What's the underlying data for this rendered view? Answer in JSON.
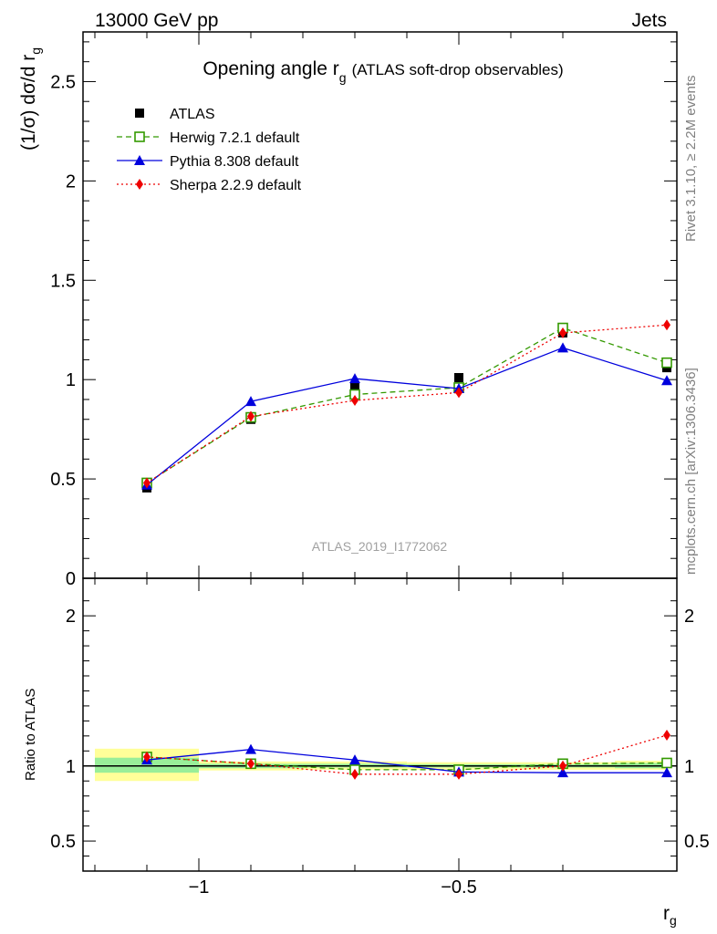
{
  "header": {
    "left": "13000 GeV pp",
    "right": "Jets"
  },
  "side_labels": {
    "rivet": "Rivet 3.1.10, ≥ 2.2M events",
    "mcplots": "mcplots.cern.ch [arXiv:1306.3436]"
  },
  "chart_data": [
    {
      "type": "line",
      "title_main": "Opening angle r",
      "title_sub": "g",
      "title_note": "(ATLAS soft-drop observables)",
      "ylabel_main": "(1/σ) dσ/d r",
      "ylabel_sub": "g",
      "xlim": [
        -1.2,
        -0.3
      ],
      "ylim": [
        0,
        2.75
      ],
      "yticks": [
        {
          "v": 0,
          "label": "0"
        },
        {
          "v": 0.5,
          "label": "0.5"
        },
        {
          "v": 1,
          "label": "1"
        },
        {
          "v": 1.5,
          "label": "1.5"
        },
        {
          "v": 2,
          "label": "2"
        },
        {
          "v": 2.5,
          "label": "2.5"
        }
      ],
      "watermark": "ATLAS_2019_I1772062",
      "data_series": {
        "name": "ATLAS",
        "x": [
          -1.1,
          -0.9,
          -0.7,
          -0.5,
          -0.3,
          -0.1
        ],
        "y": [
          0.455,
          0.8,
          0.965,
          1.01,
          1.235,
          1.06
        ]
      },
      "series": [
        {
          "name": "Herwig 7.2.1 default",
          "color": "#339900",
          "dash": "6,4",
          "marker": "open-square",
          "x": [
            -1.1,
            -0.9,
            -0.7,
            -0.5,
            -0.3,
            -0.1
          ],
          "y": [
            0.48,
            0.81,
            0.925,
            0.96,
            1.26,
            1.085
          ]
        },
        {
          "name": "Pythia 8.308 default",
          "color": "#0000dd",
          "dash": "",
          "marker": "triangle",
          "x": [
            -1.1,
            -0.9,
            -0.7,
            -0.5,
            -0.3,
            -0.1
          ],
          "y": [
            0.47,
            0.89,
            1.005,
            0.955,
            1.16,
            0.995
          ]
        },
        {
          "name": "Sherpa 2.2.9 default",
          "color": "#ee0000",
          "dash": "2,3",
          "marker": "diamond",
          "x": [
            -1.1,
            -0.9,
            -0.7,
            -0.5,
            -0.3,
            -0.1
          ],
          "y": [
            0.48,
            0.815,
            0.895,
            0.935,
            1.235,
            1.275
          ]
        }
      ]
    },
    {
      "type": "line",
      "ylabel": "Ratio to ATLAS",
      "xlabel_main": "r",
      "xlabel_sub": "g",
      "xlim": [
        -1.2,
        -0.3
      ],
      "ylim": [
        0.3,
        2.25
      ],
      "yticks": [
        {
          "v": 0.5,
          "label": "0.5"
        },
        {
          "v": 1,
          "label": "1"
        },
        {
          "v": 2,
          "label": "2"
        }
      ],
      "xticks": [
        {
          "v": -1,
          "label": "−1"
        },
        {
          "v": -0.5,
          "label": "−0.5"
        }
      ],
      "bands": [
        {
          "x0": -1.2,
          "x1": -1.0,
          "yellow": [
            0.9,
            1.115
          ],
          "green": [
            0.955,
            1.055
          ]
        },
        {
          "x0": -1.0,
          "x1": -0.8,
          "yellow": [
            0.97,
            1.03
          ],
          "green": [
            0.985,
            1.015
          ]
        },
        {
          "x0": -0.8,
          "x1": -0.6,
          "yellow": [
            0.975,
            1.03
          ],
          "green": [
            0.99,
            1.015
          ]
        },
        {
          "x0": -0.6,
          "x1": -0.4,
          "yellow": [
            0.975,
            1.025
          ],
          "green": [
            0.99,
            1.012
          ]
        },
        {
          "x0": -0.4,
          "x1": -0.2,
          "yellow": [
            0.975,
            1.025
          ],
          "green": [
            0.99,
            1.012
          ]
        },
        {
          "x0": -0.2,
          "x1": 0.0,
          "yellow": [
            0.975,
            1.035
          ],
          "green": [
            0.985,
            1.02
          ]
        }
      ],
      "series": [
        {
          "name": "Herwig 7.2.1 default",
          "color": "#339900",
          "dash": "6,4",
          "marker": "open-square",
          "x": [
            -1.1,
            -0.9,
            -0.7,
            -0.5,
            -0.3,
            -0.1
          ],
          "y": [
            1.06,
            1.015,
            0.975,
            0.975,
            1.015,
            1.02
          ]
        },
        {
          "name": "Pythia 8.308 default",
          "color": "#0000dd",
          "dash": "",
          "marker": "triangle",
          "x": [
            -1.1,
            -0.9,
            -0.7,
            -0.5,
            -0.3,
            -0.1
          ],
          "y": [
            1.04,
            1.11,
            1.04,
            0.96,
            0.955,
            0.955
          ]
        },
        {
          "name": "Sherpa 2.2.9 default",
          "color": "#ee0000",
          "dash": "2,3",
          "marker": "diamond",
          "x": [
            -1.1,
            -0.9,
            -0.7,
            -0.5,
            -0.3,
            -0.1
          ],
          "y": [
            1.06,
            1.015,
            0.945,
            0.945,
            1.0,
            1.205
          ]
        }
      ]
    }
  ]
}
